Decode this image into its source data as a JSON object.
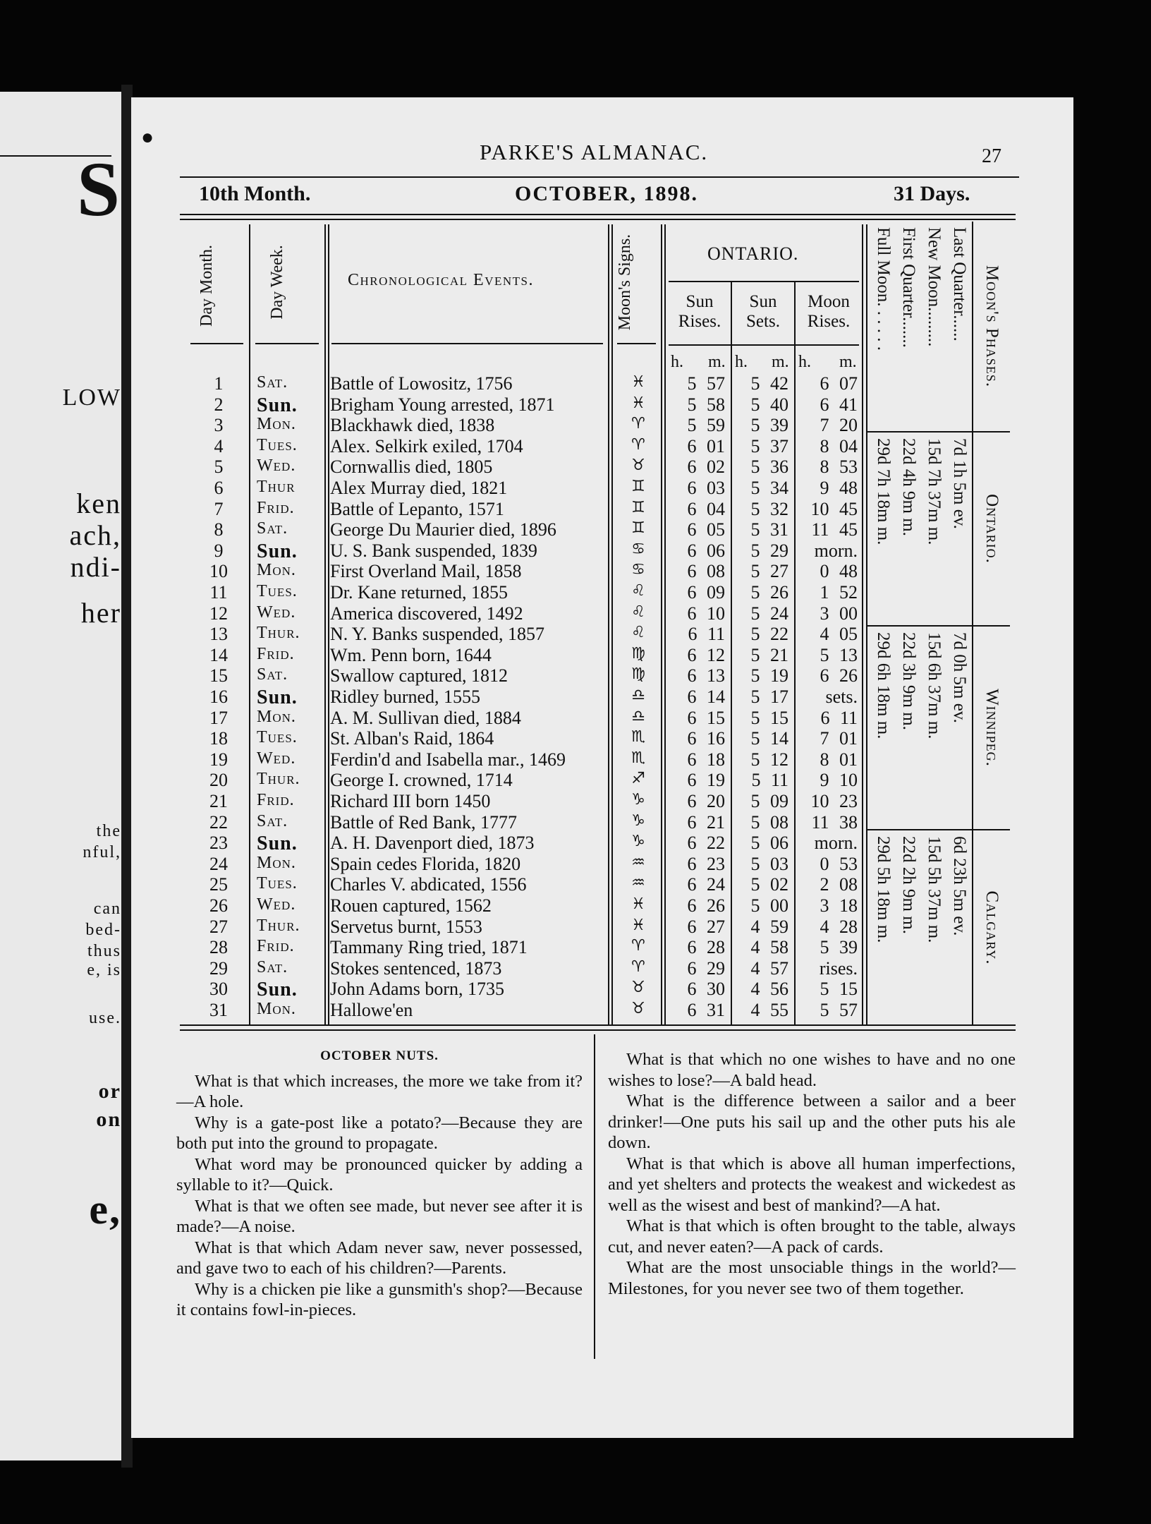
{
  "left_page_fragments": [
    "S",
    "LOW",
    "ken",
    "ach,",
    "ndi-",
    "her",
    "the",
    "nful,",
    "can",
    "bed-",
    "thus",
    "e, is",
    "use.",
    "or",
    "on",
    "e,"
  ],
  "header": {
    "title": "PARKE'S ALMANAC.",
    "page_number": "27"
  },
  "month_line": {
    "month_number": "10th Month.",
    "month_name": "OCTOBER, 1898.",
    "days": "31 Days."
  },
  "table": {
    "col_headers": {
      "day_month": "Day Month.",
      "day_week": "Day Week.",
      "events": "Chronological Events.",
      "moon_signs": "Moon's Signs.",
      "region": "ONTARIO.",
      "sun_rises": "Sun Rises.",
      "sun_sets": "Sun Sets.",
      "moon_rises": "Moon Rises.",
      "h": "h.",
      "m": "m."
    },
    "rows": [
      {
        "day": "1",
        "week": "Sat.",
        "event": "Battle of Lowositz, 1756",
        "sign": "pisces-icon",
        "sr": "5 57",
        "ss": "5 42",
        "mr": "6 07"
      },
      {
        "day": "2",
        "week": "Sun.",
        "event": "Brigham Young arrested, 1871",
        "sign": "pisces-icon",
        "sr": "5 58",
        "ss": "5 40",
        "mr": "6 41"
      },
      {
        "day": "3",
        "week": "Mon.",
        "event": "Blackhawk died, 1838",
        "sign": "aries-icon",
        "sr": "5 59",
        "ss": "5 39",
        "mr": "7 20"
      },
      {
        "day": "4",
        "week": "Tues.",
        "event": "Alex. Selkirk exiled, 1704",
        "sign": "aries-icon",
        "sr": "6 01",
        "ss": "5 37",
        "mr": "8 04"
      },
      {
        "day": "5",
        "week": "Wed.",
        "event": "Cornwallis died, 1805",
        "sign": "taurus-icon",
        "sr": "6 02",
        "ss": "5 36",
        "mr": "8 53"
      },
      {
        "day": "6",
        "week": "Thur",
        "event": "Alex Murray died, 1821",
        "sign": "gemini-icon",
        "sr": "6 03",
        "ss": "5 34",
        "mr": "9 48"
      },
      {
        "day": "7",
        "week": "Frid.",
        "event": "Battle of Lepanto, 1571",
        "sign": "gemini-icon",
        "sr": "6 04",
        "ss": "5 32",
        "mr": "10 45"
      },
      {
        "day": "8",
        "week": "Sat.",
        "event": "George Du Maurier died, 1896",
        "sign": "gemini-icon",
        "sr": "6 05",
        "ss": "5 31",
        "mr": "11 45"
      },
      {
        "day": "9",
        "week": "Sun.",
        "event": "U. S. Bank suspended, 1839",
        "sign": "cancer-icon",
        "sr": "6 06",
        "ss": "5 29",
        "mr": "morn."
      },
      {
        "day": "10",
        "week": "Mon.",
        "event": "First Overland Mail, 1858",
        "sign": "cancer-icon",
        "sr": "6 08",
        "ss": "5 27",
        "mr": "0 48"
      },
      {
        "day": "11",
        "week": "Tues.",
        "event": "Dr. Kane returned, 1855",
        "sign": "leo-icon",
        "sr": "6 09",
        "ss": "5 26",
        "mr": "1 52"
      },
      {
        "day": "12",
        "week": "Wed.",
        "event": "America discovered, 1492",
        "sign": "leo-icon",
        "sr": "6 10",
        "ss": "5 24",
        "mr": "3 00"
      },
      {
        "day": "13",
        "week": "Thur.",
        "event": "N. Y. Banks suspended, 1857",
        "sign": "leo-icon",
        "sr": "6 11",
        "ss": "5 22",
        "mr": "4 05"
      },
      {
        "day": "14",
        "week": "Frid.",
        "event": "Wm. Penn born, 1644",
        "sign": "virgo-icon",
        "sr": "6 12",
        "ss": "5 21",
        "mr": "5 13"
      },
      {
        "day": "15",
        "week": "Sat.",
        "event": "Swallow captured, 1812",
        "sign": "virgo-icon",
        "sr": "6 13",
        "ss": "5 19",
        "mr": "6 26"
      },
      {
        "day": "16",
        "week": "Sun.",
        "event": "Ridley burned, 1555",
        "sign": "libra-icon",
        "sr": "6 14",
        "ss": "5 17",
        "mr": "sets."
      },
      {
        "day": "17",
        "week": "Mon.",
        "event": "A. M. Sullivan died, 1884",
        "sign": "libra-icon",
        "sr": "6 15",
        "ss": "5 15",
        "mr": "6 11"
      },
      {
        "day": "18",
        "week": "Tues.",
        "event": "St. Alban's Raid, 1864",
        "sign": "scorpio-icon",
        "sr": "6 16",
        "ss": "5 14",
        "mr": "7 01"
      },
      {
        "day": "19",
        "week": "Wed.",
        "event": "Ferdin'd and Isabella mar., 1469",
        "sign": "scorpio-icon",
        "sr": "6 18",
        "ss": "5 12",
        "mr": "8 01"
      },
      {
        "day": "20",
        "week": "Thur.",
        "event": "George I. crowned, 1714",
        "sign": "sagittarius-icon",
        "sr": "6 19",
        "ss": "5 11",
        "mr": "9 10"
      },
      {
        "day": "21",
        "week": "Frid.",
        "event": "Richard III born 1450",
        "sign": "capricorn-icon",
        "sr": "6 20",
        "ss": "5 09",
        "mr": "10 23"
      },
      {
        "day": "22",
        "week": "Sat.",
        "event": "Battle of Red Bank, 1777",
        "sign": "capricorn-icon",
        "sr": "6 21",
        "ss": "5 08",
        "mr": "11 38"
      },
      {
        "day": "23",
        "week": "Sun.",
        "event": "A. H. Davenport died, 1873",
        "sign": "capricorn-icon",
        "sr": "6 22",
        "ss": "5 06",
        "mr": "morn."
      },
      {
        "day": "24",
        "week": "Mon.",
        "event": "Spain cedes Florida, 1820",
        "sign": "aquarius-icon",
        "sr": "6 23",
        "ss": "5 03",
        "mr": "0 53"
      },
      {
        "day": "25",
        "week": "Tues.",
        "event": "Charles V. abdicated, 1556",
        "sign": "aquarius-icon",
        "sr": "6 24",
        "ss": "5 02",
        "mr": "2 08"
      },
      {
        "day": "26",
        "week": "Wed.",
        "event": "Rouen captured, 1562",
        "sign": "pisces-icon",
        "sr": "6 26",
        "ss": "5 00",
        "mr": "3 18"
      },
      {
        "day": "27",
        "week": "Thur.",
        "event": "Servetus burnt, 1553",
        "sign": "pisces-icon",
        "sr": "6 27",
        "ss": "4 59",
        "mr": "4 28"
      },
      {
        "day": "28",
        "week": "Frid.",
        "event": "Tammany Ring tried, 1871",
        "sign": "aries-icon",
        "sr": "6 28",
        "ss": "4 58",
        "mr": "5 39"
      },
      {
        "day": "29",
        "week": "Sat.",
        "event": "Stokes sentenced, 1873",
        "sign": "aries-icon",
        "sr": "6 29",
        "ss": "4 57",
        "mr": "rises."
      },
      {
        "day": "30",
        "week": "Sun.",
        "event": "John Adams born, 1735",
        "sign": "taurus-icon",
        "sr": "6 30",
        "ss": "4 56",
        "mr": "5 15"
      },
      {
        "day": "31",
        "week": "Mon.",
        "event": "Hallowe'en",
        "sign": "taurus-icon",
        "sr": "6 31",
        "ss": "4 55",
        "mr": "5 57"
      }
    ]
  },
  "moon_phases": {
    "title": "Moon's Phases.",
    "labels": [
      "Last Quarter......",
      "New Moon.........",
      "First Quarter.......",
      "Full Moon. . . . . ."
    ],
    "regions": [
      {
        "name": "Ontario.",
        "values": [
          "7d 1h 5m ev.",
          "15d 7h 37m m.",
          "22d 4h 9m m.",
          "29d 7h 18m m."
        ]
      },
      {
        "name": "Winnipeg.",
        "values": [
          "7d 0h 5m ev.",
          "15d 6h 37m m.",
          "22d 3h 9m m.",
          "29d 6h 18m m."
        ]
      },
      {
        "name": "Calgary.",
        "values": [
          "6d 23h 5m ev.",
          "15d 5h 37m m.",
          "22d 2h 9m m.",
          "29d 5h 18m m."
        ]
      }
    ]
  },
  "nuts": {
    "title": "OCTOBER NUTS.",
    "left": [
      "What is that which increases, the more we take from it?—A hole.",
      "Why is a gate-post like a potato?—Because they are both put into the ground to propagate.",
      "What word may be pronounced quicker by adding a syllable to it?—Quick.",
      "What is that we often see made, but never see after it is made?—A noise.",
      "What is that which Adam never saw, never possessed, and gave two to each of his children?—Parents.",
      "Why is a chicken pie like a gunsmith's shop?—Because it contains fowl-in-pieces."
    ],
    "right": [
      "What is that which no one wishes to have and no one wishes to lose?—A bald head.",
      "What is the difference between a sailor and a beer drinker!—One puts his sail up and the other puts his ale down.",
      "What is that which is above all human imperfections, and yet shelters and protects the weakest and wickedest as well as the wisest and best of mankind?—A hat.",
      "What is that which is often brought to the table, always cut, and never eaten?—A pack of cards.",
      "What are the most unsociable things in the world?—Milestones, for you never see two of them together."
    ]
  }
}
